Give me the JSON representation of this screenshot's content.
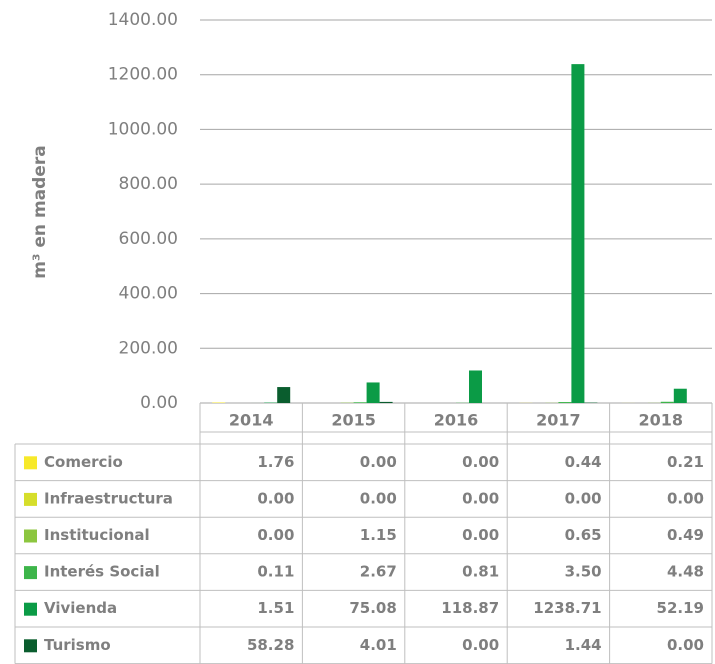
{
  "chart_data": {
    "type": "bar",
    "y_label": "m³ en madera",
    "categories": [
      "2014",
      "2015",
      "2016",
      "2017",
      "2018"
    ],
    "series": [
      {
        "name": "Comercio",
        "color": "#f7e92a",
        "values": [
          1.76,
          0,
          0,
          0.44,
          0.21
        ],
        "value_labels": [
          "1.76",
          "0.00",
          "0.00",
          "0.44",
          "0.21"
        ]
      },
      {
        "name": "Infraestructura",
        "color": "#d6de2b",
        "values": [
          0,
          0,
          0,
          0,
          0
        ],
        "value_labels": [
          "0.00",
          "0.00",
          "0.00",
          "0.00",
          "0.00"
        ]
      },
      {
        "name": "Institucional",
        "color": "#8cc63f",
        "values": [
          0,
          1.15,
          0,
          0.65,
          0.49
        ],
        "value_labels": [
          "0.00",
          "1.15",
          "0.00",
          "0.65",
          "0.49"
        ]
      },
      {
        "name": "Interés Social",
        "color": "#3db54a",
        "values": [
          0.11,
          2.67,
          0.81,
          3.5,
          4.48
        ],
        "value_labels": [
          "0.11",
          "2.67",
          "0.81",
          "3.50",
          "4.48"
        ]
      },
      {
        "name": "Vivienda",
        "color": "#0b9b46",
        "values": [
          1.51,
          75.08,
          118.87,
          1238.71,
          52.19
        ],
        "value_labels": [
          "1.51",
          "75.08",
          "118.87",
          "1238.71",
          "52.19"
        ]
      },
      {
        "name": "Turismo",
        "color": "#0a5d2e",
        "values": [
          58.28,
          4.01,
          0,
          1.44,
          0
        ],
        "value_labels": [
          "58.28",
          "4.01",
          "0.00",
          "1.44",
          "0.00"
        ]
      }
    ],
    "ylim": [
      0,
      1400
    ],
    "yticks": [
      {
        "value": 0,
        "label": "0.00"
      },
      {
        "value": 200,
        "label": "200.00"
      },
      {
        "value": 400,
        "label": "400.00"
      },
      {
        "value": 600,
        "label": "600.00"
      },
      {
        "value": 800,
        "label": "800.00"
      },
      {
        "value": 1000,
        "label": "1000.00"
      },
      {
        "value": 1200,
        "label": "1200.00"
      },
      {
        "value": 1400,
        "label": "1400.00"
      }
    ],
    "grid": true
  }
}
